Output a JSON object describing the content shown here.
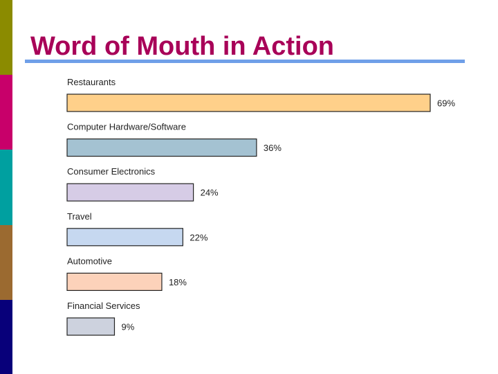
{
  "slide": {
    "title": "Word of Mouth in Action",
    "title_color": "#a80058",
    "rule_color": "#6f9fe8",
    "side_strip_colors": [
      "#8b8b00",
      "#c8006a",
      "#00a0a0",
      "#9b6a30",
      "#08007a"
    ]
  },
  "chart_data": {
    "type": "bar",
    "orientation": "horizontal",
    "categories": [
      "Restaurants",
      "Computer Hardware/Software",
      "Consumer Electronics",
      "Travel",
      "Automotive",
      "Financial Services"
    ],
    "values": [
      69,
      36,
      24,
      22,
      18,
      9
    ],
    "value_labels": [
      "69%",
      "36%",
      "24%",
      "22%",
      "18%",
      "9%"
    ],
    "bar_colors": [
      "#ffd08a",
      "#a4c2d2",
      "#d6cce6",
      "#c6d8f0",
      "#fcd2ba",
      "#cdd2de"
    ],
    "xlim": [
      0,
      69
    ],
    "grid": false,
    "legend": "none"
  }
}
